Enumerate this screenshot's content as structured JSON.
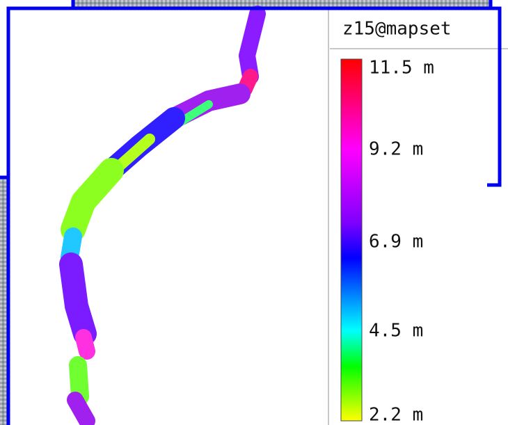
{
  "legend": {
    "title": "z15@mapset",
    "labels": [
      "11.5 m",
      "9.2 m",
      "6.9 m",
      "4.5 m",
      "2.2 m"
    ]
  }
}
